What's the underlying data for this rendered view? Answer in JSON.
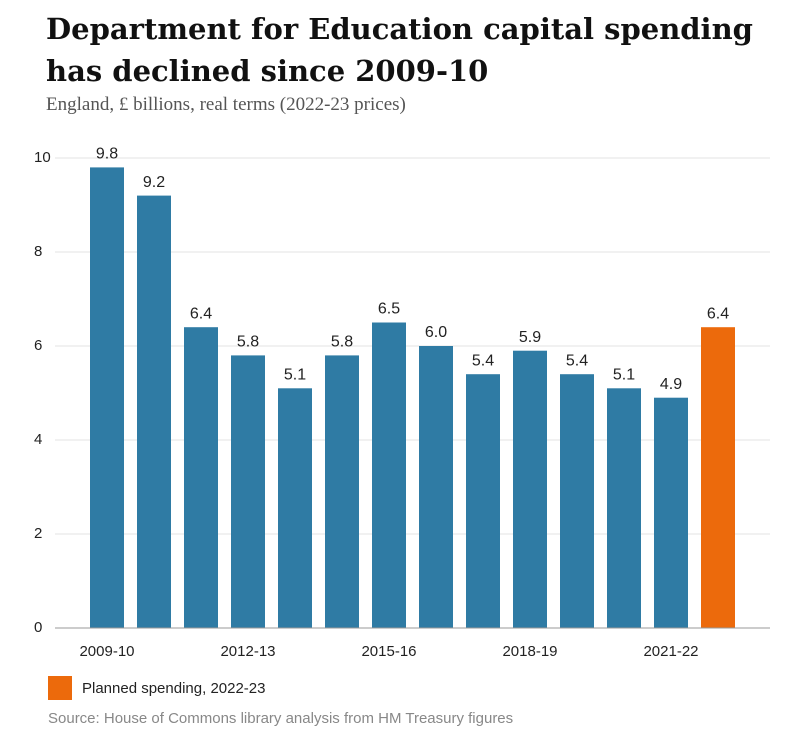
{
  "chart_data": {
    "type": "bar",
    "title": "Department for Education capital spending has declined since 2009-10",
    "subtitle": "England, £ billions, real terms (2022-23 prices)",
    "source": "Source: House of Commons library analysis from HM Treasury figures",
    "categories": [
      "2009-10",
      null,
      null,
      "2012-13",
      null,
      null,
      "2015-16",
      null,
      null,
      "2018-19",
      null,
      null,
      "2021-22",
      null
    ],
    "values": [
      9.8,
      9.2,
      6.4,
      5.8,
      5.1,
      5.8,
      6.5,
      6.0,
      5.4,
      5.9,
      5.4,
      5.1,
      4.9,
      6.4
    ],
    "value_labels": [
      "9.8",
      "9.2",
      "6.4",
      "5.8",
      "5.1",
      "5.8",
      "6.5",
      "6.0",
      "5.4",
      "5.9",
      "5.4",
      "5.1",
      "4.9",
      "6.4"
    ],
    "colors": [
      "#2f7ba4",
      "#2f7ba4",
      "#2f7ba4",
      "#2f7ba4",
      "#2f7ba4",
      "#2f7ba4",
      "#2f7ba4",
      "#2f7ba4",
      "#2f7ba4",
      "#2f7ba4",
      "#2f7ba4",
      "#2f7ba4",
      "#2f7ba4",
      "#ec6a0c"
    ],
    "legend": {
      "label": "Planned spending, 2022-23",
      "color": "#ec6a0c"
    },
    "ylim": [
      0,
      10
    ],
    "yticks": [
      0,
      2,
      4,
      6,
      8,
      10
    ],
    "grid": true
  }
}
